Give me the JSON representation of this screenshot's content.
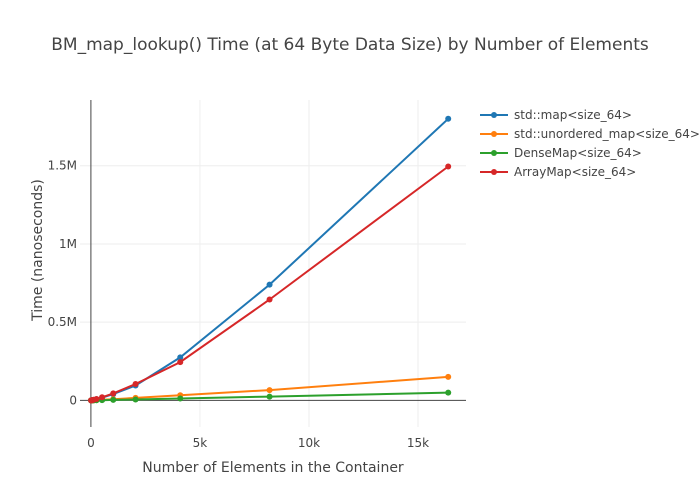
{
  "chart_data": {
    "type": "line",
    "title": "BM_map_lookup() Time (at 64 Byte Data Size) by Number of Elements",
    "xlabel": "Number of Elements in the Container",
    "ylabel": "Time (nanoseconds)",
    "xlim": [
      -500,
      17200
    ],
    "ylim": [
      -170000,
      1920000
    ],
    "x_ticks": [
      {
        "value": 0,
        "label": "0"
      },
      {
        "value": 5000,
        "label": "5k"
      },
      {
        "value": 10000,
        "label": "10k"
      },
      {
        "value": 15000,
        "label": "15k"
      }
    ],
    "y_ticks": [
      {
        "value": 0,
        "label": "0"
      },
      {
        "value": 500000,
        "label": "0.5M"
      },
      {
        "value": 1000000,
        "label": "1M"
      },
      {
        "value": 1500000,
        "label": "1.5M"
      }
    ],
    "grid": true,
    "legend_position": "top-right",
    "x": [
      8,
      16,
      32,
      64,
      128,
      256,
      512,
      1024,
      2048,
      4096,
      8192,
      16384
    ],
    "series": [
      {
        "name": "std::map<size_64>",
        "color": "#1f77b4",
        "values": [
          0,
          0,
          600,
          1500,
          3200,
          7500,
          17000,
          40000,
          95000,
          275000,
          740000,
          1800000
        ]
      },
      {
        "name": "std::unordered_map<size_64>",
        "color": "#ff7f0e",
        "values": [
          0,
          0,
          200,
          500,
          1000,
          2000,
          4000,
          8000,
          16000,
          33000,
          66000,
          150000
        ]
      },
      {
        "name": "DenseMap<size_64>",
        "color": "#2ca02c",
        "values": [
          0,
          0,
          100,
          200,
          400,
          800,
          1600,
          3000,
          6000,
          12000,
          24000,
          50000
        ]
      },
      {
        "name": "ArrayMap<size_64>",
        "color": "#d62728",
        "values": [
          0,
          0,
          700,
          1800,
          4000,
          9000,
          20000,
          45000,
          105000,
          245000,
          645000,
          1495000
        ]
      }
    ]
  }
}
